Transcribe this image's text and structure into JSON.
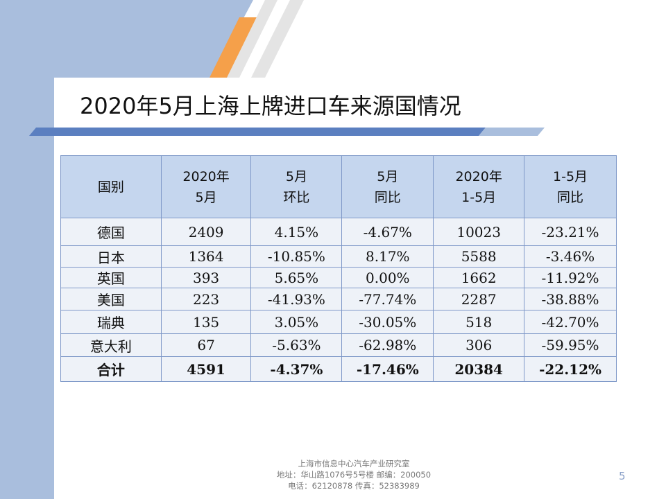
{
  "slide": {
    "title": "2020年5月上海上牌进口车来源国情况",
    "page_number": "5"
  },
  "table": {
    "headers": [
      [
        "国别"
      ],
      [
        "2020年",
        "5月"
      ],
      [
        "5月",
        "环比"
      ],
      [
        "5月",
        "同比"
      ],
      [
        "2020年",
        "1-5月"
      ],
      [
        "1-5月",
        "同比"
      ]
    ],
    "rows": [
      [
        "德国",
        "2409",
        "4.15%",
        "-4.67%",
        "10023",
        "-23.21%"
      ],
      [
        "日本",
        "1364",
        "-10.85%",
        "8.17%",
        "5588",
        "-3.46%"
      ],
      [
        "英国",
        "393",
        "5.65%",
        "0.00%",
        "1662",
        "-11.92%"
      ],
      [
        "美国",
        "223",
        "-41.93%",
        "-77.74%",
        "2287",
        "-38.88%"
      ],
      [
        "瑞典",
        "135",
        "3.05%",
        "-30.05%",
        "518",
        "-42.70%"
      ],
      [
        "意大利",
        "67",
        "-5.63%",
        "-62.98%",
        "306",
        "-59.95%"
      ]
    ],
    "total": [
      "合计",
      "4591",
      "-4.37%",
      "-17.46%",
      "20384",
      "-22.12%"
    ]
  },
  "footer": {
    "line1": "上海市信息中心汽车产业研究室",
    "line2": "地址：华山路1076号5号楼    邮编：200050",
    "line3": "电话：62120878  传真：52383989"
  },
  "colors": {
    "header_fill": "#c5d6ee",
    "body_fill": "#eef2f8",
    "border": "#7e98c8",
    "band_blue": "#a9bedd",
    "accent_orange": "#f5a04a"
  }
}
